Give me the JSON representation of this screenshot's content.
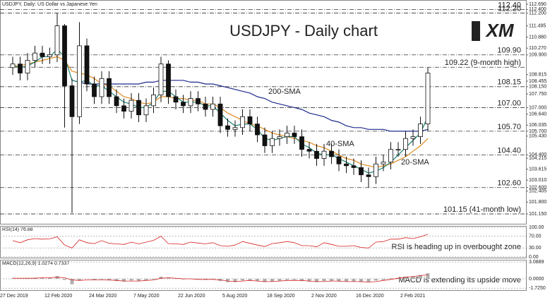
{
  "chart_data": [
    {
      "type": "candlestick",
      "header": "USDJPY, Daily:  US Dollar vs Japanese Yen",
      "title": "USDJPY - Daily chart",
      "logo": "XM",
      "categories": [
        "27 Dec 2019",
        null,
        null,
        null,
        null,
        null,
        "12 Feb 2020",
        null,
        null,
        null,
        null,
        null,
        "24 Mar 2020",
        null,
        null,
        null,
        null,
        null,
        "7 May 2020",
        null,
        null,
        null,
        null,
        null,
        "22 Jun 2020",
        null,
        null,
        null,
        null,
        null,
        "5 Aug 2020",
        null,
        null,
        null,
        null,
        null,
        "18 Sep 2020",
        null,
        null,
        null,
        null,
        null,
        "2 Nov 2020",
        null,
        null,
        null,
        null,
        null,
        "16 Dec 2020",
        null,
        null,
        null,
        null,
        null,
        "2 Feb 2021",
        null,
        null
      ],
      "open": [
        109.2,
        109.4,
        108.9,
        109.6,
        110.0,
        109.8,
        109.9,
        111.5,
        108.2,
        106.5,
        110.4,
        108.3,
        107.6,
        108.6,
        107.6,
        107.1,
        106.8,
        107.4,
        106.6,
        107.1,
        107.7,
        109.4,
        107.6,
        107.3,
        107.1,
        107.5,
        107.2,
        106.9,
        107.2,
        106.0,
        105.8,
        105.9,
        106.5,
        106.1,
        105.5,
        104.9,
        105.3,
        105.4,
        105.6,
        105.4,
        104.7,
        104.6,
        104.2,
        104.6,
        104.3,
        103.9,
        103.8,
        103.7,
        103.3,
        103.2,
        103.9,
        104.0,
        104.7,
        104.7,
        105.3,
        105.4,
        106.1
      ],
      "high": [
        109.8,
        109.8,
        110.0,
        110.4,
        110.4,
        110.3,
        112.2,
        111.6,
        108.6,
        111.7,
        110.8,
        108.7,
        109.0,
        109.0,
        108.0,
        107.5,
        107.8,
        107.8,
        107.5,
        108.1,
        109.8,
        109.6,
        108.0,
        107.7,
        107.9,
        107.9,
        107.6,
        107.6,
        107.6,
        106.4,
        106.3,
        106.9,
        106.9,
        106.5,
        105.9,
        105.7,
        105.8,
        106.0,
        106.0,
        105.8,
        105.1,
        105.0,
        105.0,
        105.0,
        104.7,
        104.3,
        104.2,
        104.1,
        103.7,
        104.3,
        104.4,
        105.1,
        105.1,
        105.7,
        105.8,
        106.5,
        109.22
      ],
      "low": [
        108.8,
        108.5,
        108.5,
        109.2,
        109.4,
        109.4,
        109.5,
        105.9,
        101.2,
        106.1,
        107.9,
        107.2,
        107.2,
        107.2,
        106.7,
        106.4,
        106.4,
        106.2,
        106.2,
        106.7,
        107.3,
        107.2,
        106.9,
        106.7,
        106.7,
        106.8,
        106.5,
        106.5,
        105.6,
        105.4,
        105.4,
        105.5,
        105.7,
        105.1,
        104.5,
        104.5,
        104.9,
        105.0,
        105.0,
        104.3,
        104.2,
        103.8,
        103.8,
        103.9,
        103.5,
        103.4,
        103.3,
        102.9,
        102.6,
        102.8,
        103.5,
        103.6,
        104.3,
        104.3,
        104.9,
        105.0,
        105.7
      ],
      "close": [
        109.4,
        108.9,
        109.6,
        110.0,
        109.8,
        109.9,
        111.5,
        108.2,
        106.5,
        110.4,
        108.3,
        107.6,
        108.6,
        107.6,
        107.1,
        106.8,
        107.4,
        106.6,
        107.1,
        107.7,
        109.4,
        107.6,
        107.3,
        107.1,
        107.5,
        107.2,
        106.9,
        107.2,
        106.0,
        105.8,
        105.9,
        106.5,
        106.1,
        105.5,
        104.9,
        105.3,
        105.4,
        105.6,
        105.4,
        104.7,
        104.6,
        104.2,
        104.6,
        104.3,
        103.9,
        103.8,
        103.7,
        103.3,
        103.2,
        103.9,
        104.0,
        104.7,
        104.7,
        105.3,
        105.4,
        106.1,
        108.9
      ],
      "up_color": "#ffffff",
      "down_color": "#111111",
      "series": [
        {
          "name": "200-SMA",
          "color": "#1f2a8c",
          "values": [
            null,
            null,
            null,
            null,
            null,
            null,
            null,
            null,
            108.5,
            108.4,
            108.3,
            108.3,
            108.3,
            108.3,
            108.3,
            108.3,
            108.3,
            108.3,
            108.4,
            108.4,
            108.5,
            108.5,
            108.5,
            108.5,
            108.4,
            108.4,
            108.3,
            108.3,
            108.2,
            108.1,
            108.0,
            107.9,
            107.8,
            107.6,
            107.5,
            107.3,
            107.2,
            107.1,
            107.0,
            106.9,
            106.7,
            106.6,
            106.5,
            106.3,
            106.2,
            106.0,
            105.9,
            105.9,
            105.8,
            105.8,
            105.8,
            105.7,
            105.7,
            105.7,
            105.7,
            105.7,
            105.8
          ]
        },
        {
          "name": "40-SMA",
          "color": "#e08a1e",
          "values": [
            109.3,
            109.3,
            109.4,
            109.5,
            109.6,
            109.7,
            109.8,
            109.6,
            109.0,
            108.9,
            108.8,
            108.6,
            108.3,
            108.2,
            107.9,
            107.6,
            107.5,
            107.3,
            107.2,
            107.3,
            107.6,
            107.6,
            107.5,
            107.5,
            107.4,
            107.4,
            107.2,
            107.2,
            107.0,
            106.7,
            106.5,
            106.3,
            106.1,
            106.0,
            105.8,
            105.6,
            105.5,
            105.4,
            105.3,
            105.2,
            105.1,
            104.9,
            104.8,
            104.6,
            104.4,
            104.2,
            104.1,
            103.9,
            103.8,
            103.7,
            103.8,
            103.9,
            104.1,
            104.3,
            104.6,
            104.9,
            105.3
          ]
        },
        {
          "name": "20-SMA",
          "color": "#1c7f6e",
          "values": [
            109.3,
            109.2,
            109.3,
            109.5,
            109.8,
            109.8,
            110.2,
            109.8,
            108.5,
            108.4,
            108.5,
            108.2,
            108.2,
            107.9,
            107.6,
            107.3,
            107.2,
            107.0,
            107.0,
            107.3,
            107.9,
            107.9,
            107.6,
            107.3,
            107.3,
            107.3,
            107.1,
            107.1,
            106.7,
            106.3,
            106.0,
            106.1,
            106.1,
            105.8,
            105.3,
            105.2,
            105.3,
            105.4,
            105.4,
            105.0,
            104.8,
            104.5,
            104.4,
            104.4,
            104.2,
            104.0,
            103.8,
            103.6,
            103.4,
            103.5,
            103.7,
            104.0,
            104.4,
            104.8,
            105.2,
            105.6,
            106.5
          ]
        }
      ],
      "levels": [
        {
          "value": 112.4,
          "label": "112.40",
          "color": "#d62020"
        },
        {
          "value": 112.2,
          "label": "112.20",
          "color": "#d62020"
        },
        {
          "value": 109.9,
          "label": "109.90",
          "color": "#d62020"
        },
        {
          "value": 109.22,
          "label": "109.22 (9-month high)",
          "color": "#d62020"
        },
        {
          "value": 108.15,
          "label": "108.15",
          "color": "#1a9a1a"
        },
        {
          "value": 107.0,
          "label": "107.00",
          "color": "#1a9a1a"
        },
        {
          "value": 105.7,
          "label": "105.70",
          "color": "#1a9a1a"
        },
        {
          "value": 104.4,
          "label": "104.40",
          "color": "#1a9a1a"
        },
        {
          "value": 102.6,
          "label": "102.60",
          "color": "#1a9a1a"
        },
        {
          "value": 101.15,
          "label": "101.15 (41-month low)",
          "color": "#1a9a1a"
        }
      ],
      "ylim": [
        100.57,
        112.92
      ],
      "yticks": [
        {
          "value": 112.69,
          "label": "112.690"
        },
        {
          "value": 112.4,
          "label": "112.400"
        },
        {
          "value": 112.2,
          "label": "112.200"
        },
        {
          "value": 111.495,
          "label": "111.495"
        },
        {
          "value": 110.88,
          "label": "110.880"
        },
        {
          "value": 110.27,
          "label": "110.270"
        },
        {
          "value": 109.9,
          "label": "109.900"
        },
        {
          "value": 108.815,
          "label": "108.815"
        },
        {
          "value": 108.455,
          "label": "108.455"
        },
        {
          "value": 108.15,
          "label": "108.150"
        },
        {
          "value": 107.75,
          "label": "107.750"
        },
        {
          "value": 107.0,
          "label": "107.000"
        },
        {
          "value": 106.64,
          "label": "106.640"
        },
        {
          "value": 106.035,
          "label": "106.035"
        },
        {
          "value": 105.7,
          "label": "105.700"
        },
        {
          "value": 105.43,
          "label": "105.430"
        },
        {
          "value": 104.4,
          "label": "104.400"
        },
        {
          "value": 104.215,
          "label": "104.215"
        },
        {
          "value": 103.615,
          "label": "103.615"
        },
        {
          "value": 103.01,
          "label": "103.010"
        },
        {
          "value": 102.6,
          "label": "102.600"
        },
        {
          "value": 102.405,
          "label": "102.405"
        },
        {
          "value": 101.8,
          "label": "101.800"
        },
        {
          "value": 101.15,
          "label": "101.150"
        }
      ]
    },
    {
      "type": "line",
      "header": "RSI(14) 76.88",
      "annotation": "RSI is heading up in overbought zone",
      "color": "#d62020",
      "values": [
        55,
        48,
        58,
        62,
        60,
        61,
        68,
        40,
        30,
        58,
        48,
        45,
        55,
        46,
        44,
        42,
        50,
        44,
        50,
        56,
        70,
        45,
        44,
        42,
        50,
        47,
        44,
        48,
        38,
        36,
        40,
        52,
        46,
        40,
        35,
        45,
        48,
        52,
        48,
        38,
        38,
        34,
        48,
        42,
        36,
        36,
        38,
        32,
        30,
        50,
        52,
        60,
        60,
        65,
        62,
        68,
        76.88
      ],
      "ylim": [
        -5,
        105
      ],
      "yticks": [
        {
          "value": 100,
          "label": "100.00"
        },
        {
          "value": 70,
          "label": "70.00"
        },
        {
          "value": 30,
          "label": "30.00"
        },
        {
          "value": 0,
          "label": "0.00"
        }
      ]
    },
    {
      "type": "macd",
      "header": "MACD(12,26,9) 1.0274 0.7337",
      "annotation": "MACD is extending its upside move",
      "color": "#b0b0b0",
      "signal_color": "#d62020",
      "values": [
        0.1,
        0.0,
        0.1,
        0.2,
        0.2,
        0.2,
        0.5,
        -0.2,
        -1.0,
        -0.3,
        0.0,
        -0.2,
        -0.1,
        -0.3,
        -0.4,
        -0.5,
        -0.3,
        -0.4,
        -0.3,
        -0.1,
        0.4,
        0.2,
        0.0,
        -0.1,
        0.0,
        -0.1,
        -0.2,
        -0.1,
        -0.4,
        -0.6,
        -0.6,
        -0.3,
        -0.3,
        -0.4,
        -0.6,
        -0.5,
        -0.4,
        -0.2,
        -0.2,
        -0.4,
        -0.5,
        -0.6,
        -0.4,
        -0.4,
        -0.5,
        -0.5,
        -0.5,
        -0.6,
        -0.6,
        -0.3,
        -0.2,
        0.1,
        0.2,
        0.4,
        0.5,
        0.7,
        1.0274
      ],
      "signal": [
        0.1,
        0.1,
        0.1,
        0.1,
        0.2,
        0.2,
        0.3,
        0.2,
        -0.2,
        -0.3,
        -0.2,
        -0.2,
        -0.2,
        -0.2,
        -0.3,
        -0.4,
        -0.4,
        -0.4,
        -0.3,
        -0.2,
        0.1,
        0.2,
        0.1,
        0.0,
        0.0,
        -0.1,
        -0.1,
        -0.1,
        -0.2,
        -0.4,
        -0.5,
        -0.4,
        -0.3,
        -0.4,
        -0.5,
        -0.5,
        -0.4,
        -0.3,
        -0.3,
        -0.3,
        -0.4,
        -0.5,
        -0.5,
        -0.4,
        -0.4,
        -0.5,
        -0.5,
        -0.5,
        -0.6,
        -0.5,
        -0.3,
        -0.1,
        0.1,
        0.3,
        0.4,
        0.6,
        0.7337
      ],
      "ylim": [
        -2.2,
        3.5
      ],
      "yticks": [
        {
          "value": 3.0889,
          "label": "3.0889"
        },
        {
          "value": 0,
          "label": "0.0000"
        },
        {
          "value": -1.725,
          "label": "-1.7250"
        }
      ]
    }
  ]
}
